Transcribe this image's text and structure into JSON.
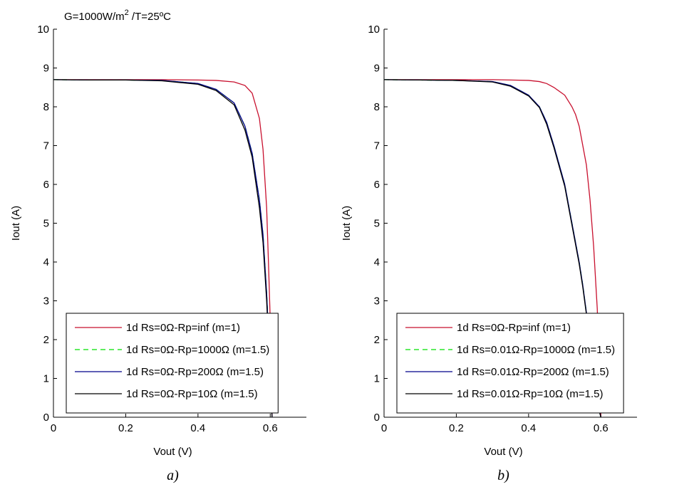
{
  "chart_data": [
    {
      "type": "line",
      "annotation": {
        "text": "G=1000W/m",
        "superscript": "2",
        "tail": " /T=25ºC"
      },
      "xlabel": "Vout (V)",
      "ylabel": "Iout (A)",
      "caption": "a)",
      "xlim": [
        0,
        0.7
      ],
      "ylim": [
        0,
        10
      ],
      "xticks": [
        0,
        0.2,
        0.4,
        0.6
      ],
      "yticks": [
        0,
        1,
        2,
        3,
        4,
        5,
        6,
        7,
        8,
        9,
        10
      ],
      "legend": "lower right",
      "x": [
        0,
        0.1,
        0.2,
        0.3,
        0.4,
        0.45,
        0.5,
        0.53,
        0.55,
        0.57,
        0.58,
        0.59,
        0.595,
        0.6,
        0.605
      ],
      "series": [
        {
          "name": "1d Rs=0Ω-Rp=inf (m=1)",
          "color": "#c8102e",
          "dash": false,
          "values": [
            8.7,
            8.7,
            8.7,
            8.7,
            8.69,
            8.68,
            8.64,
            8.55,
            8.35,
            7.7,
            6.9,
            5.4,
            4.0,
            2.5,
            0
          ]
        },
        {
          "name": "1d Rs=0Ω-Rp=1000Ω (m=1.5)",
          "color": "#00e000",
          "dash": true,
          "values": [
            8.7,
            8.69,
            8.69,
            8.68,
            8.6,
            8.45,
            8.1,
            7.5,
            6.8,
            5.6,
            4.7,
            3.2,
            2.2,
            1.0,
            0
          ]
        },
        {
          "name": "1d Rs=0Ω-Rp=200Ω (m=1.5)",
          "color": "#00008b",
          "dash": false,
          "values": [
            8.7,
            8.69,
            8.69,
            8.68,
            8.6,
            8.45,
            8.1,
            7.5,
            6.8,
            5.6,
            4.7,
            3.2,
            2.2,
            1.0,
            0
          ]
        },
        {
          "name": "1d Rs=0Ω-Rp=10Ω (m=1.5)",
          "color": "#000000",
          "dash": false,
          "values": [
            8.7,
            8.69,
            8.69,
            8.67,
            8.58,
            8.42,
            8.05,
            7.4,
            6.7,
            5.4,
            4.5,
            3.0,
            2.0,
            0.8,
            0
          ]
        }
      ]
    },
    {
      "type": "line",
      "xlabel": "Vout (V)",
      "ylabel": "Iout (A)",
      "caption": "b)",
      "xlim": [
        0,
        0.7
      ],
      "ylim": [
        0,
        10
      ],
      "xticks": [
        0,
        0.2,
        0.4,
        0.6
      ],
      "yticks": [
        0,
        1,
        2,
        3,
        4,
        5,
        6,
        7,
        8,
        9,
        10
      ],
      "legend": "lower right",
      "x": [
        0,
        0.1,
        0.2,
        0.3,
        0.35,
        0.4,
        0.43,
        0.45,
        0.47,
        0.5,
        0.52,
        0.53,
        0.54,
        0.55,
        0.56,
        0.57,
        0.58,
        0.59,
        0.6
      ],
      "series": [
        {
          "name": "1d Rs=0Ω-Rp=inf (m=1)",
          "color": "#c8102e",
          "dash": false,
          "values": [
            8.7,
            8.7,
            8.7,
            8.7,
            8.69,
            8.68,
            8.65,
            8.6,
            8.5,
            8.3,
            8.0,
            7.8,
            7.5,
            7.0,
            6.5,
            5.6,
            4.4,
            2.8,
            0
          ]
        },
        {
          "name": "1d Rs=0.01Ω-Rp=1000Ω (m=1.5)",
          "color": "#00e000",
          "dash": true,
          "values": [
            8.7,
            8.69,
            8.68,
            8.65,
            8.55,
            8.3,
            8.0,
            7.6,
            7.0,
            6.0,
            5.0,
            4.5,
            4.0,
            3.4,
            2.7,
            2.0,
            1.2,
            0.4,
            0
          ]
        },
        {
          "name": "1d Rs=0.01Ω-Rp=200Ω (m=1.5)",
          "color": "#00008b",
          "dash": false,
          "values": [
            8.7,
            8.69,
            8.68,
            8.65,
            8.55,
            8.3,
            8.0,
            7.6,
            7.0,
            6.0,
            5.0,
            4.5,
            4.0,
            3.4,
            2.7,
            2.0,
            1.2,
            0.4,
            0
          ]
        },
        {
          "name": "1d Rs=0.01Ω-Rp=10Ω (m=1.5)",
          "color": "#000000",
          "dash": false,
          "values": [
            8.7,
            8.69,
            8.68,
            8.64,
            8.53,
            8.28,
            7.98,
            7.55,
            6.95,
            5.95,
            4.95,
            4.45,
            3.95,
            3.35,
            2.65,
            1.95,
            1.15,
            0.35,
            0
          ]
        }
      ]
    }
  ]
}
